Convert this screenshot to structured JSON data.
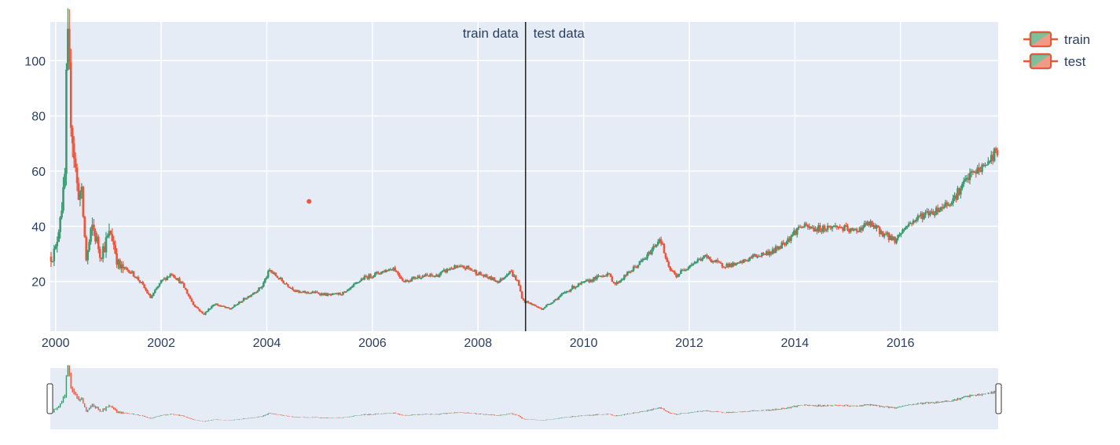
{
  "chart_data": {
    "type": "candlestick",
    "title": "",
    "xlabel": "",
    "ylabel": "",
    "x_range": [
      1999.9,
      2017.85
    ],
    "ylim": [
      2,
      114
    ],
    "x_ticks": [
      2000,
      2002,
      2004,
      2006,
      2008,
      2010,
      2012,
      2014,
      2016
    ],
    "y_ticks": [
      20,
      40,
      60,
      80,
      100
    ],
    "grid": true,
    "legend": {
      "position": "top-right",
      "entries": [
        "train",
        "test"
      ]
    },
    "split": {
      "x": 2008.9,
      "label_left": "train data",
      "label_right": "test data"
    },
    "colors": {
      "increasing": "#3d9970",
      "decreasing": "#ef553b",
      "plot_bg": "#e5ecf6",
      "split_line": "#1f1f1f"
    },
    "price_anchors": [
      [
        1999.9,
        29
      ],
      [
        2000.0,
        31
      ],
      [
        2000.1,
        47
      ],
      [
        2000.17,
        52
      ],
      [
        2000.22,
        108
      ],
      [
        2000.3,
        78
      ],
      [
        2000.4,
        55
      ],
      [
        2000.5,
        50
      ],
      [
        2000.58,
        28
      ],
      [
        2000.7,
        40
      ],
      [
        2000.85,
        30
      ],
      [
        2001.05,
        38
      ],
      [
        2001.2,
        25
      ],
      [
        2001.4,
        24
      ],
      [
        2001.6,
        20
      ],
      [
        2001.8,
        14
      ],
      [
        2002.0,
        20
      ],
      [
        2002.2,
        23
      ],
      [
        2002.4,
        19
      ],
      [
        2002.6,
        12
      ],
      [
        2002.8,
        8
      ],
      [
        2003.0,
        12
      ],
      [
        2003.3,
        10
      ],
      [
        2003.6,
        14
      ],
      [
        2003.9,
        18
      ],
      [
        2004.05,
        24
      ],
      [
        2004.3,
        20
      ],
      [
        2004.6,
        16
      ],
      [
        2004.9,
        16
      ],
      [
        2005.2,
        15
      ],
      [
        2005.5,
        16
      ],
      [
        2005.8,
        21
      ],
      [
        2006.1,
        23
      ],
      [
        2006.4,
        25
      ],
      [
        2006.6,
        20
      ],
      [
        2006.9,
        22
      ],
      [
        2007.2,
        22
      ],
      [
        2007.5,
        25
      ],
      [
        2007.8,
        25
      ],
      [
        2008.1,
        22
      ],
      [
        2008.4,
        20
      ],
      [
        2008.6,
        24
      ],
      [
        2008.75,
        20
      ],
      [
        2008.85,
        13
      ],
      [
        2009.0,
        12
      ],
      [
        2009.2,
        10
      ],
      [
        2009.5,
        14
      ],
      [
        2009.8,
        18
      ],
      [
        2010.2,
        21
      ],
      [
        2010.45,
        23
      ],
      [
        2010.6,
        19
      ],
      [
        2010.9,
        24
      ],
      [
        2011.2,
        29
      ],
      [
        2011.45,
        36
      ],
      [
        2011.6,
        25
      ],
      [
        2011.75,
        22
      ],
      [
        2012.0,
        26
      ],
      [
        2012.3,
        29
      ],
      [
        2012.6,
        26
      ],
      [
        2012.9,
        26
      ],
      [
        2013.2,
        29
      ],
      [
        2013.6,
        31
      ],
      [
        2013.9,
        36
      ],
      [
        2014.1,
        40
      ],
      [
        2014.4,
        39
      ],
      [
        2014.8,
        40
      ],
      [
        2015.1,
        38
      ],
      [
        2015.4,
        41
      ],
      [
        2015.7,
        37
      ],
      [
        2015.9,
        35
      ],
      [
        2016.1,
        40
      ],
      [
        2016.4,
        44
      ],
      [
        2016.7,
        46
      ],
      [
        2017.0,
        50
      ],
      [
        2017.3,
        58
      ],
      [
        2017.6,
        62
      ],
      [
        2017.85,
        68
      ]
    ],
    "outlier_point": {
      "x": 2004.8,
      "y": 49,
      "color": "#ef553b"
    }
  }
}
